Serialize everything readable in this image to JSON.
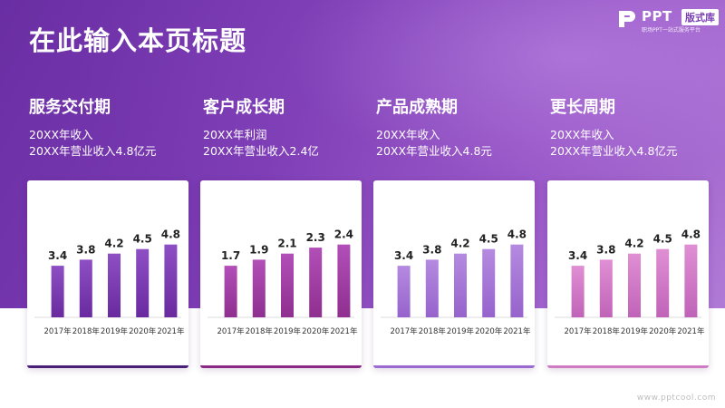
{
  "page": {
    "title": "在此输入本页标题",
    "footer": "www.pptcool.com"
  },
  "logo": {
    "brand": "PPT",
    "badge": "版式库",
    "tagline": "职场PPT一站式服务平台"
  },
  "sections": [
    {
      "title": "服务交付期",
      "line1": "20XX年收入",
      "line2": "20XX年营业收入4.8亿元"
    },
    {
      "title": "客户成长期",
      "line1": "20XX年利润",
      "line2": "20XX年营业收入2.4亿"
    },
    {
      "title": "产品成熟期",
      "line1": "20XX年收入",
      "line2": "20XX年营业收入4.8元"
    },
    {
      "title": "更长周期",
      "line1": "20XX年收入",
      "line2": "20XX年营业收入4.8亿元"
    }
  ],
  "colors": {
    "accent_dark": "#6a2ea3",
    "card1": [
      "#8f4fc4",
      "#6a2a9f"
    ],
    "card2": [
      "#b24fb8",
      "#8f2f8f"
    ],
    "card3": [
      "#b58ae0",
      "#9663cc"
    ],
    "card4": [
      "#e08fd4",
      "#c063b8"
    ]
  },
  "chart_data": [
    {
      "type": "bar",
      "categories": [
        "2017年",
        "2018年",
        "2019年",
        "2020年",
        "2021年"
      ],
      "values": [
        3.4,
        3.8,
        4.2,
        4.5,
        4.8
      ],
      "ylim": [
        0,
        5.5
      ]
    },
    {
      "type": "bar",
      "categories": [
        "2017年",
        "2018年",
        "2019年",
        "2020年",
        "2021年"
      ],
      "values": [
        1.7,
        1.9,
        2.1,
        2.3,
        2.4
      ],
      "ylim": [
        0,
        2.75
      ]
    },
    {
      "type": "bar",
      "categories": [
        "2017年",
        "2018年",
        "2019年",
        "2020年",
        "2021年"
      ],
      "values": [
        3.4,
        3.8,
        4.2,
        4.5,
        4.8
      ],
      "ylim": [
        0,
        5.5
      ]
    },
    {
      "type": "bar",
      "categories": [
        "2017年",
        "2018年",
        "2019年",
        "2020年",
        "2021年"
      ],
      "values": [
        3.4,
        3.8,
        4.2,
        4.5,
        4.8
      ],
      "ylim": [
        0,
        5.5
      ]
    }
  ]
}
